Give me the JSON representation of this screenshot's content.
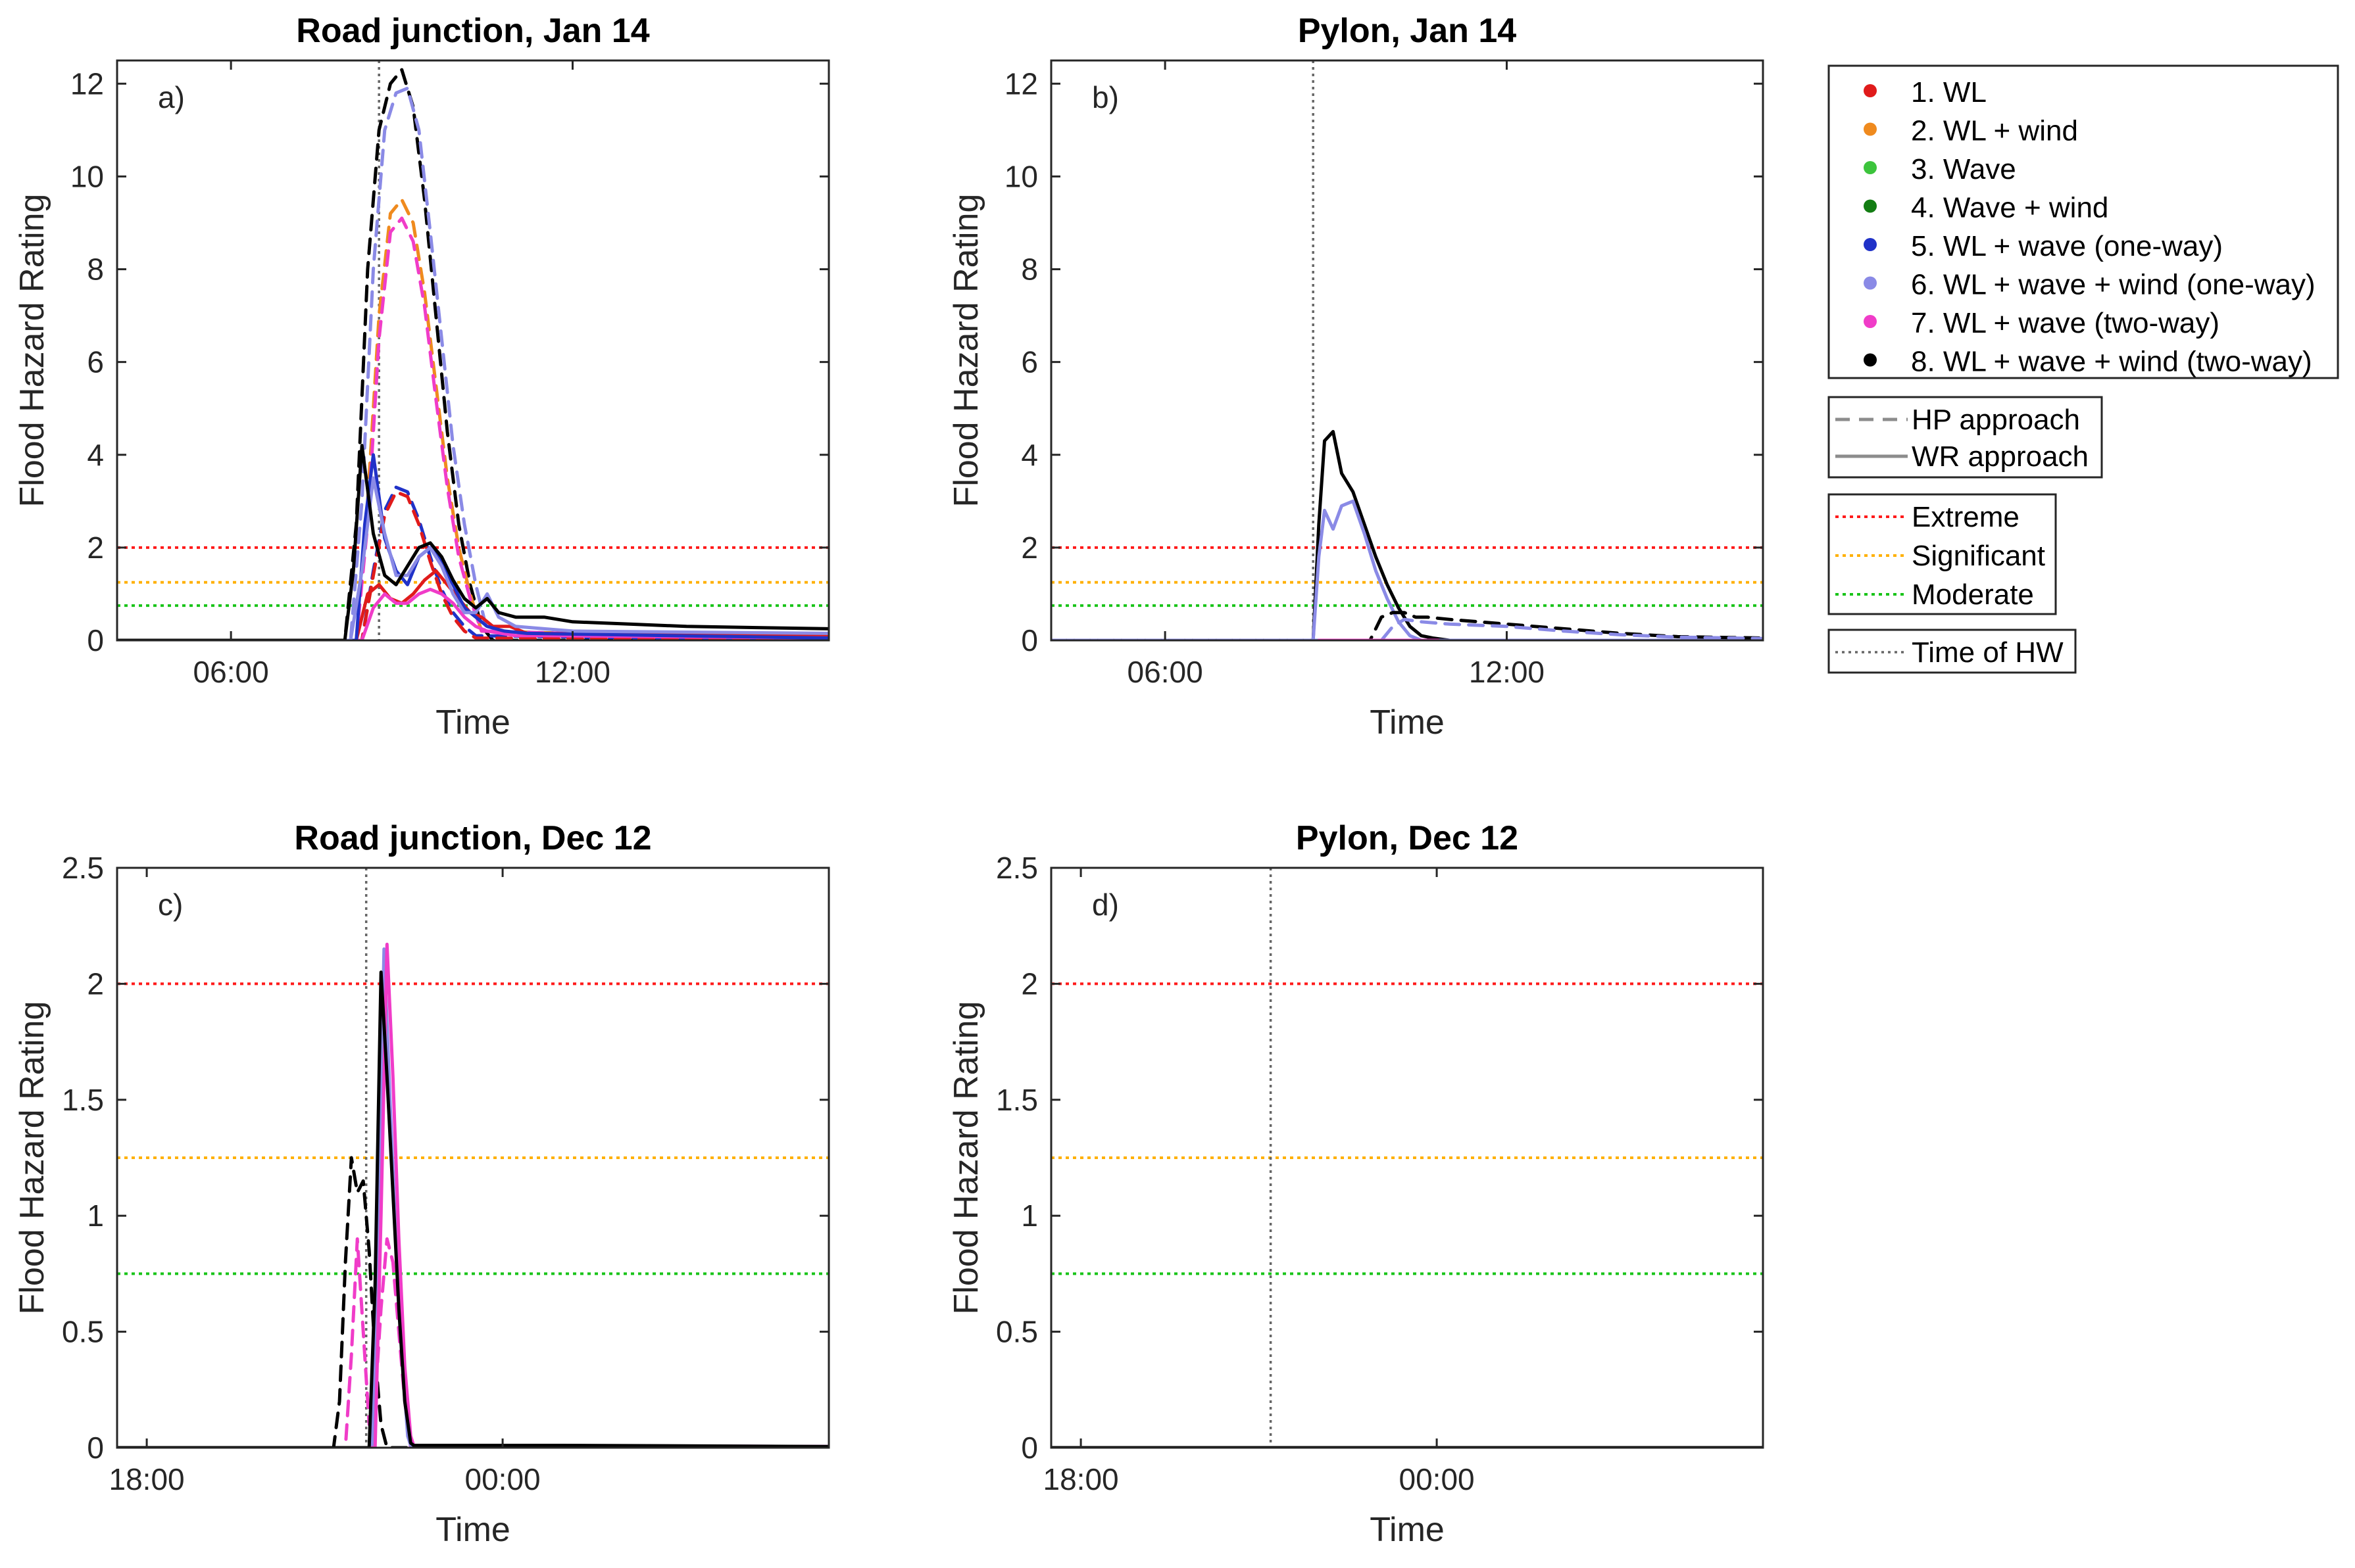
{
  "chart_data": {
    "type": "line",
    "ylabel": "Flood Hazard Rating",
    "xlabel": "Time",
    "thresholds": [
      {
        "key": "extreme",
        "label": "Extreme",
        "value": 2,
        "color": "#ff1a1a"
      },
      {
        "key": "significant",
        "label": "Significant",
        "value": 1.25,
        "color": "#ffb000"
      },
      {
        "key": "moderate",
        "label": "Moderate",
        "value": 0.75,
        "color": "#19c419"
      }
    ],
    "legend": {
      "series": [
        {
          "label": "1. WL",
          "color": "#e01b1b"
        },
        {
          "label": "2. WL + wind",
          "color": "#ef8a1e"
        },
        {
          "label": "3. Wave",
          "color": "#3cc43c"
        },
        {
          "label": "4. Wave + wind",
          "color": "#137d13"
        },
        {
          "label": "5. WL + wave (one-way)",
          "color": "#2032c8"
        },
        {
          "label": "6. WL + wave + wind (one-way)",
          "color": "#8a8ae6"
        },
        {
          "label": "7. WL + wave (two-way)",
          "color": "#f03cc8"
        },
        {
          "label": "8. WL + wave + wind (two-way)",
          "color": "#000000"
        }
      ],
      "approaches": [
        {
          "label": "HP approach",
          "dash": "dashed",
          "color": "#8c8c8c"
        },
        {
          "label": "WR approach",
          "dash": "solid",
          "color": "#8c8c8c"
        }
      ],
      "levels": [
        "Extreme",
        "Significant",
        "Moderate"
      ],
      "hw": {
        "label": "Time of HW",
        "color": "#666666"
      }
    },
    "panels": [
      {
        "id": "a",
        "tag": "a)",
        "title": "Road junction, Jan 14",
        "xlim": [
          4.0,
          16.5
        ],
        "ylim": [
          0,
          12.5
        ],
        "xticks": [
          6,
          12
        ],
        "xticklabels": [
          "06:00",
          "12:00"
        ],
        "yticks": [
          0,
          2,
          4,
          6,
          8,
          10,
          12
        ],
        "yticklabels": [
          "0",
          "2",
          "4",
          "6",
          "8",
          "10",
          "12"
        ],
        "hw": 8.6,
        "series": [
          {
            "name": "WL + wave + wind (two-way) HP",
            "color": "#000000",
            "dash": true,
            "x": [
              4.0,
              8.0,
              8.2,
              8.4,
              8.6,
              8.8,
              9.0,
              9.2,
              9.4,
              9.6,
              9.8,
              10.0,
              10.2,
              10.4,
              10.6,
              16.5
            ],
            "y": [
              0,
              0,
              2.5,
              8.0,
              11.0,
              12.0,
              12.3,
              11.5,
              9.5,
              7.0,
              4.5,
              2.5,
              1.2,
              0.3,
              0,
              0
            ]
          },
          {
            "name": "WL + wave + wind (one-way) HP",
            "color": "#8a8ae6",
            "dash": true,
            "x": [
              4.0,
              8.1,
              8.3,
              8.5,
              8.7,
              8.9,
              9.1,
              9.3,
              9.5,
              9.7,
              9.9,
              10.1,
              10.3,
              10.5,
              16.5
            ],
            "y": [
              0,
              0,
              3.0,
              8.0,
              11.0,
              11.8,
              11.9,
              11.0,
              8.8,
              6.5,
              4.2,
              2.5,
              1.2,
              0.2,
              0
            ]
          },
          {
            "name": "WL + wind HP",
            "color": "#ef8a1e",
            "dash": true,
            "x": [
              4.0,
              8.2,
              8.4,
              8.6,
              8.8,
              9.0,
              9.2,
              9.4,
              9.6,
              9.8,
              10.0,
              10.2,
              10.4,
              16.5
            ],
            "y": [
              0,
              0,
              3.0,
              7.0,
              9.2,
              9.5,
              9.0,
              7.5,
              5.5,
              3.5,
              2.0,
              1.0,
              0.2,
              0
            ]
          },
          {
            "name": "WL + wave (two-way) HP",
            "color": "#f03cc8",
            "dash": true,
            "x": [
              4.0,
              8.2,
              8.4,
              8.6,
              8.8,
              9.0,
              9.2,
              9.4,
              9.6,
              9.8,
              10.0,
              10.2,
              10.4,
              16.5
            ],
            "y": [
              0,
              0,
              2.5,
              6.5,
              8.8,
              9.1,
              8.6,
              7.2,
              5.2,
              3.3,
              1.8,
              0.9,
              0.2,
              0
            ]
          },
          {
            "name": "WL + wave (one-way) HP",
            "color": "#2032c8",
            "dash": true,
            "x": [
              4.0,
              8.3,
              8.5,
              8.7,
              8.9,
              9.1,
              9.3,
              9.5,
              9.7,
              9.9,
              10.1,
              10.3,
              16.5
            ],
            "y": [
              0,
              0,
              1.5,
              2.8,
              3.3,
              3.2,
              2.6,
              1.8,
              1.1,
              0.6,
              0.3,
              0.1,
              0
            ]
          },
          {
            "name": "WL HP",
            "color": "#e01b1b",
            "dash": true,
            "x": [
              4.0,
              8.3,
              8.5,
              8.7,
              8.9,
              9.1,
              9.3,
              9.5,
              9.7,
              9.9,
              10.1,
              10.3,
              16.5
            ],
            "y": [
              0,
              0,
              1.4,
              2.7,
              3.2,
              3.1,
              2.5,
              1.7,
              1.0,
              0.5,
              0.2,
              0.05,
              0
            ]
          },
          {
            "name": "WL WR",
            "color": "#e01b1b",
            "dash": false,
            "x": [
              4.0,
              8.2,
              8.4,
              8.6,
              8.8,
              9.0,
              9.2,
              9.4,
              9.6,
              9.8,
              10.0,
              10.2,
              10.4,
              10.6,
              10.9,
              11.2,
              16.5
            ],
            "y": [
              0,
              0,
              1.0,
              1.2,
              0.9,
              0.8,
              1.0,
              1.3,
              1.5,
              1.2,
              0.9,
              0.6,
              0.5,
              0.3,
              0.3,
              0.15,
              0.1
            ]
          },
          {
            "name": "WL + wave (two-way) WR",
            "color": "#f03cc8",
            "dash": false,
            "x": [
              4.0,
              8.3,
              8.5,
              8.7,
              8.9,
              9.1,
              9.3,
              9.5,
              9.7,
              9.9,
              10.1,
              10.3,
              10.5,
              11.0,
              11.5,
              16.5
            ],
            "y": [
              0,
              0,
              0.7,
              1.0,
              0.8,
              0.8,
              1.0,
              1.1,
              1.0,
              0.8,
              0.5,
              0.3,
              0.2,
              0.1,
              0.1,
              0.05
            ]
          },
          {
            "name": "WL + wave (one-way) WR",
            "color": "#2032c8",
            "dash": false,
            "x": [
              4.0,
              8.2,
              8.35,
              8.5,
              8.7,
              8.9,
              9.1,
              9.3,
              9.5,
              9.7,
              9.9,
              10.1,
              10.3,
              10.5,
              10.8,
              11.2,
              16.5
            ],
            "y": [
              0,
              0,
              2.5,
              4.0,
              2.2,
              1.5,
              1.2,
              1.8,
              2.0,
              1.7,
              1.2,
              0.7,
              0.5,
              0.3,
              0.2,
              0.15,
              0.05
            ]
          },
          {
            "name": "WL + wave + wind (one-way) WR",
            "color": "#8a8ae6",
            "dash": false,
            "x": [
              4.0,
              8.1,
              8.3,
              8.5,
              8.7,
              8.9,
              9.1,
              9.3,
              9.5,
              9.7,
              9.9,
              10.1,
              10.3,
              10.5,
              10.7,
              11.0,
              11.5,
              12.0,
              16.5
            ],
            "y": [
              0,
              0,
              1.5,
              3.5,
              2.3,
              1.4,
              1.4,
              1.8,
              2.0,
              1.6,
              1.0,
              0.6,
              0.6,
              1.0,
              0.5,
              0.3,
              0.25,
              0.2,
              0.15
            ]
          },
          {
            "name": "WL + wave + wind (two-way) WR",
            "color": "#000000",
            "dash": false,
            "x": [
              4.0,
              8.0,
              8.15,
              8.3,
              8.5,
              8.7,
              8.9,
              9.1,
              9.3,
              9.5,
              9.7,
              9.9,
              10.1,
              10.3,
              10.5,
              10.7,
              11.0,
              11.5,
              12.0,
              13.0,
              14.0,
              16.5
            ],
            "y": [
              0,
              0,
              1.5,
              4.2,
              2.3,
              1.4,
              1.2,
              1.6,
              2.0,
              2.1,
              1.8,
              1.3,
              0.9,
              0.7,
              0.9,
              0.6,
              0.5,
              0.5,
              0.4,
              0.35,
              0.3,
              0.25
            ]
          }
        ]
      },
      {
        "id": "b",
        "tag": "b)",
        "title": "Pylon, Jan 14",
        "xlim": [
          4.0,
          16.5
        ],
        "ylim": [
          0,
          12.5
        ],
        "xticks": [
          6,
          12
        ],
        "xticklabels": [
          "06:00",
          "12:00"
        ],
        "yticks": [
          0,
          2,
          4,
          6,
          8,
          10,
          12
        ],
        "yticklabels": [
          "0",
          "2",
          "4",
          "6",
          "8",
          "10",
          "12"
        ],
        "hw": 8.6,
        "series": [
          {
            "name": "WL + wave + wind (two-way) WR",
            "color": "#000000",
            "dash": false,
            "x": [
              4.0,
              8.6,
              8.7,
              8.8,
              8.95,
              9.1,
              9.3,
              9.5,
              9.7,
              9.9,
              10.1,
              10.3,
              10.5,
              10.7,
              11.0,
              16.5
            ],
            "y": [
              0,
              0,
              2.5,
              4.3,
              4.5,
              3.6,
              3.2,
              2.5,
              1.8,
              1.2,
              0.7,
              0.3,
              0.1,
              0.05,
              0,
              0
            ]
          },
          {
            "name": "WL + wave + wind (one-way) WR",
            "color": "#8a8ae6",
            "dash": false,
            "x": [
              4.0,
              8.6,
              8.7,
              8.8,
              8.95,
              9.1,
              9.3,
              9.5,
              9.7,
              9.9,
              10.1,
              10.3,
              10.5,
              10.7,
              16.5
            ],
            "y": [
              0,
              0,
              1.8,
              2.8,
              2.4,
              2.9,
              3.0,
              2.3,
              1.5,
              0.9,
              0.4,
              0.1,
              0,
              0,
              0
            ]
          },
          {
            "name": "WL + wave + wind (two-way) HP",
            "color": "#000000",
            "dash": true,
            "x": [
              4.0,
              9.6,
              9.8,
              10.0,
              10.2,
              10.4,
              10.6,
              11.0,
              12.0,
              13.0,
              14.0,
              15.0,
              16.5
            ],
            "y": [
              0,
              0,
              0.5,
              0.6,
              0.6,
              0.5,
              0.5,
              0.45,
              0.35,
              0.25,
              0.15,
              0.08,
              0.05
            ]
          },
          {
            "name": "WL + wave + wind (one-way) HP",
            "color": "#8a8ae6",
            "dash": true,
            "x": [
              4.0,
              9.8,
              10.0,
              10.2,
              10.5,
              11.0,
              12.0,
              13.0,
              14.0,
              15.0,
              16.5
            ],
            "y": [
              0,
              0,
              0.3,
              0.45,
              0.4,
              0.35,
              0.3,
              0.2,
              0.12,
              0.07,
              0.04
            ]
          },
          {
            "name": "WL + wave (two-way) WR",
            "color": "#f03cc8",
            "dash": false,
            "x": [
              8.7,
              10.8
            ],
            "y": [
              0,
              0
            ]
          }
        ]
      },
      {
        "id": "c",
        "tag": "c)",
        "title": "Road junction, Dec 12",
        "xlim": [
          17.5,
          29.5
        ],
        "ylim": [
          0,
          2.5
        ],
        "xticks": [
          18,
          24
        ],
        "xticklabels": [
          "18:00",
          "00:00"
        ],
        "yticks": [
          0,
          0.5,
          1,
          1.5,
          2,
          2.5
        ],
        "yticklabels": [
          "0",
          "0.5",
          "1",
          "1.5",
          "2",
          "2.5"
        ],
        "hw": 21.7,
        "series": [
          {
            "name": "WL + wave + wind (two-way) HP",
            "color": "#000000",
            "dash": true,
            "x": [
              17.5,
              21.15,
              21.25,
              21.35,
              21.45,
              21.55,
              21.65,
              21.75,
              21.85,
              21.95,
              22.05,
              29.5
            ],
            "y": [
              0,
              0,
              0.2,
              0.8,
              1.25,
              1.1,
              1.15,
              0.85,
              0.4,
              0.1,
              0,
              0
            ]
          },
          {
            "name": "WL + wave (two-way) HP",
            "color": "#f03cc8",
            "dash": true,
            "x": [
              17.5,
              21.35,
              21.45,
              21.55,
              21.65,
              21.75,
              21.85,
              21.95,
              22.05,
              22.15,
              22.25,
              22.35,
              22.45,
              29.5
            ],
            "y": [
              0,
              0,
              0.4,
              0.9,
              0.5,
              0.1,
              0.2,
              0.6,
              0.9,
              0.8,
              0.5,
              0.2,
              0,
              0
            ]
          },
          {
            "name": "WL + wave + wind (one-way) WR",
            "color": "#8a8ae6",
            "dash": false,
            "x": [
              17.5,
              21.8,
              21.9,
              22.0,
              22.1,
              22.2,
              22.3,
              22.4,
              22.45,
              22.5,
              29.5
            ],
            "y": [
              0,
              0,
              0.9,
              2.15,
              1.5,
              0.9,
              0.4,
              0.05,
              0.01,
              0.01,
              0.005
            ]
          },
          {
            "name": "WL + wave (two-way) WR",
            "color": "#f03cc8",
            "dash": false,
            "x": [
              17.5,
              21.85,
              21.95,
              22.05,
              22.15,
              22.25,
              22.35,
              22.45,
              22.5,
              29.5
            ],
            "y": [
              0,
              0,
              1.0,
              2.17,
              1.6,
              0.9,
              0.35,
              0.05,
              0.01,
              0.005
            ]
          },
          {
            "name": "WL + wave + wind (two-way) WR",
            "color": "#000000",
            "dash": false,
            "x": [
              17.5,
              21.75,
              21.85,
              21.95,
              22.05,
              22.15,
              22.25,
              22.35,
              22.45,
              22.5,
              25.0,
              29.5
            ],
            "y": [
              0,
              0,
              0.7,
              2.05,
              1.6,
              1.1,
              0.6,
              0.2,
              0.02,
              0.01,
              0.01,
              0.005
            ]
          }
        ]
      },
      {
        "id": "d",
        "tag": "d)",
        "title": "Pylon, Dec 12",
        "xlim": [
          17.5,
          29.5
        ],
        "ylim": [
          0,
          2.5
        ],
        "xticks": [
          18,
          24
        ],
        "xticklabels": [
          "18:00",
          "00:00"
        ],
        "yticks": [
          0,
          0.5,
          1,
          1.5,
          2,
          2.5
        ],
        "yticklabels": [
          "0",
          "0.5",
          "1",
          "1.5",
          "2",
          "2.5"
        ],
        "hw": 21.2,
        "series": [
          {
            "name": "WL + wave + wind (two-way) WR",
            "color": "#000000",
            "dash": false,
            "x": [
              17.5,
              29.5
            ],
            "y": [
              0,
              0
            ]
          }
        ]
      }
    ]
  }
}
